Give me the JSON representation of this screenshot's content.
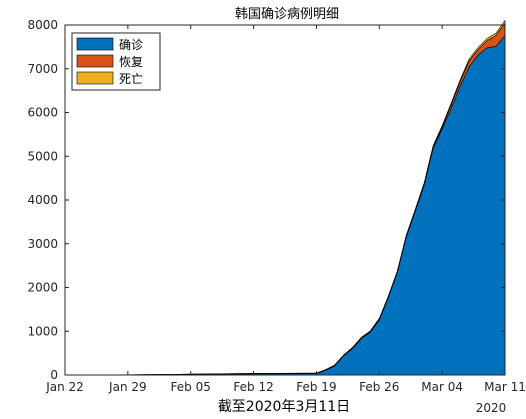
{
  "chart_data": {
    "type": "area",
    "stacked": true,
    "title": "韩国确诊病例明细",
    "xlabel": "截至2020年3月11日",
    "ylabel": "",
    "x_axis_type": "date",
    "x_tick_labels": [
      "Jan 22",
      "Jan 29",
      "Feb 05",
      "Feb 12",
      "Feb 19",
      "Feb 26",
      "Mar 04",
      "Mar 11"
    ],
    "x_secondary_label": "2020",
    "xlim": [
      "2020-01-22",
      "2020-03-11"
    ],
    "ylim": [
      0,
      8000
    ],
    "y_ticks": [
      0,
      1000,
      2000,
      3000,
      4000,
      5000,
      6000,
      7000,
      8000
    ],
    "grid": false,
    "legend_position": "top-left",
    "x": [
      "2020-01-22",
      "2020-01-29",
      "2020-02-05",
      "2020-02-12",
      "2020-02-18",
      "2020-02-19",
      "2020-02-20",
      "2020-02-21",
      "2020-02-22",
      "2020-02-23",
      "2020-02-24",
      "2020-02-25",
      "2020-02-26",
      "2020-02-27",
      "2020-02-28",
      "2020-02-29",
      "2020-03-01",
      "2020-03-02",
      "2020-03-03",
      "2020-03-04",
      "2020-03-05",
      "2020-03-06",
      "2020-03-07",
      "2020-03-08",
      "2020-03-09",
      "2020-03-10",
      "2020-03-11"
    ],
    "series": [
      {
        "name": "确诊",
        "color": "#0072BD",
        "values": [
          1,
          4,
          19,
          28,
          31,
          31,
          104,
          204,
          433,
          602,
          833,
          977,
          1261,
          1766,
          2337,
          3150,
          3736,
          4335,
          5186,
          5621,
          6088,
          6593,
          7041,
          7314,
          7478,
          7513,
          7755
        ]
      },
      {
        "name": "恢复",
        "color": "#D95319",
        "values": [
          0,
          0,
          0,
          7,
          12,
          12,
          16,
          16,
          16,
          18,
          18,
          22,
          22,
          22,
          22,
          27,
          30,
          30,
          30,
          41,
          88,
          108,
          135,
          118,
          161,
          247,
          288
        ]
      },
      {
        "name": "死亡",
        "color": "#EDB120",
        "values": [
          0,
          0,
          0,
          0,
          0,
          0,
          1,
          2,
          2,
          6,
          8,
          10,
          12,
          13,
          13,
          16,
          17,
          28,
          28,
          35,
          35,
          42,
          44,
          50,
          53,
          54,
          60
        ]
      }
    ]
  }
}
